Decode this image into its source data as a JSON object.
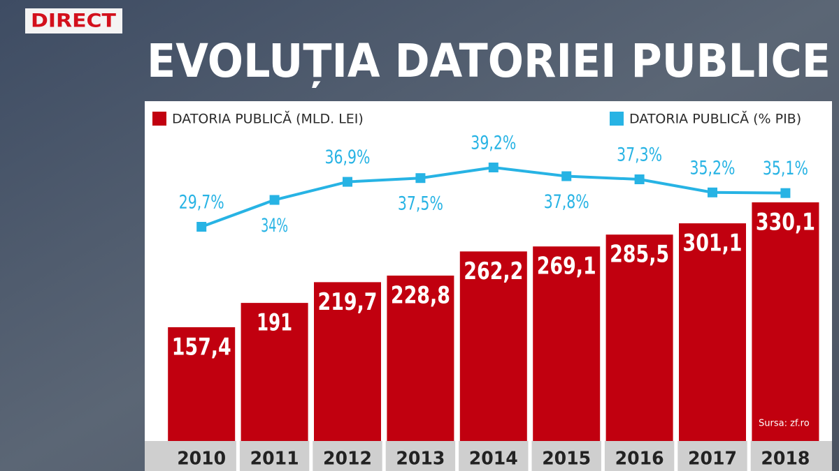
{
  "badge": "DIRECT",
  "chart_data": {
    "type": "combo",
    "title": "EVOLUȚIA DATORIEI PUBLICE",
    "categories": [
      "2010",
      "2011",
      "2012",
      "2013",
      "2014",
      "2015",
      "2016",
      "2017",
      "2018"
    ],
    "series": [
      {
        "name": "DATORIA PUBLICĂ (MLD. LEI)",
        "type": "bar",
        "color": "#c1000f",
        "values": [
          157.4,
          191,
          219.7,
          228.8,
          262.2,
          269.1,
          285.5,
          301.1,
          330.1
        ],
        "value_labels": [
          "157,4",
          "191",
          "219,7",
          "228,8",
          "262,2",
          "269,1",
          "285,5",
          "301,1",
          "330,1"
        ]
      },
      {
        "name": "DATORIA PUBLICĂ (% PIB)",
        "type": "line",
        "axis": "y2",
        "color": "#27b3e4",
        "values": [
          29.7,
          34,
          36.9,
          37.5,
          39.2,
          37.8,
          37.3,
          35.2,
          35.1
        ],
        "value_labels": [
          "29,7%",
          "34%",
          "36,9%",
          "37,5%",
          "39,2%",
          "37,8%",
          "37,3%",
          "35,2%",
          "35,1%"
        ]
      }
    ],
    "source": "Sursa: zf.ro"
  }
}
